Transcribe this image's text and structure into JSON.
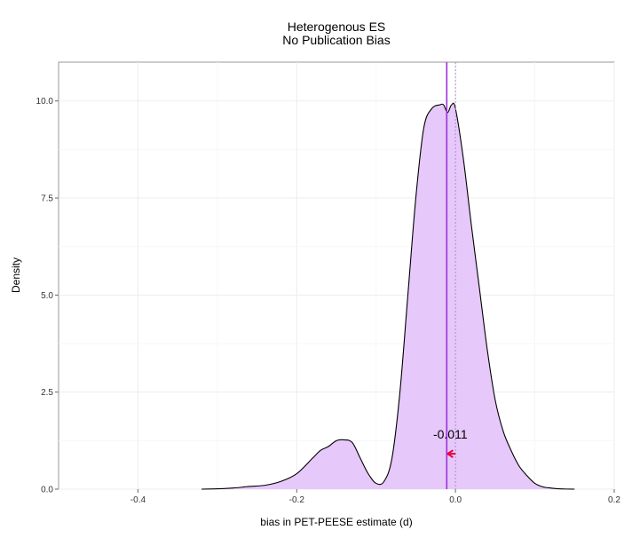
{
  "chart_data": {
    "type": "area",
    "title": [
      "Heterogenous ES",
      "No Publication Bias"
    ],
    "xlabel": "bias in PET-PEESE estimate (d)",
    "ylabel": "Density",
    "xlim": [
      -0.5,
      0.2
    ],
    "ylim": [
      0,
      11
    ],
    "xticks": [
      -0.4,
      -0.2,
      0.0,
      0.2
    ],
    "xtick_labels": [
      "-0.4",
      "-0.2",
      "0.0",
      "0.2"
    ],
    "yticks": [
      0.0,
      2.5,
      5.0,
      7.5,
      10.0
    ],
    "ytick_labels": [
      "0.0",
      "2.5",
      "5.0",
      "7.5",
      "10.0"
    ],
    "grid": true,
    "fill_color": "#e6c8fa",
    "line_color": "#000000",
    "series": [
      {
        "x": [
          -0.32,
          -0.3,
          -0.28,
          -0.26,
          -0.24,
          -0.22,
          -0.2,
          -0.18,
          -0.17,
          -0.16,
          -0.15,
          -0.14,
          -0.13,
          -0.12,
          -0.11,
          -0.1,
          -0.09,
          -0.08,
          -0.07,
          -0.06,
          -0.05,
          -0.04,
          -0.03,
          -0.02,
          -0.015,
          -0.01,
          -0.005,
          0.0,
          0.01,
          0.02,
          0.03,
          0.04,
          0.05,
          0.06,
          0.07,
          0.08,
          0.09,
          0.1,
          0.11,
          0.12,
          0.13,
          0.15
        ],
        "y": [
          0.0,
          0.01,
          0.03,
          0.07,
          0.1,
          0.2,
          0.4,
          0.8,
          1.0,
          1.1,
          1.25,
          1.27,
          1.2,
          0.8,
          0.4,
          0.15,
          0.2,
          0.8,
          2.5,
          5.0,
          7.5,
          9.3,
          9.8,
          9.9,
          9.9,
          9.7,
          9.9,
          9.8,
          8.5,
          6.8,
          5.2,
          3.6,
          2.3,
          1.5,
          1.0,
          0.6,
          0.35,
          0.15,
          0.06,
          0.03,
          0.01,
          0.0
        ]
      }
    ],
    "vlines": [
      {
        "x": -0.011,
        "style": "solid",
        "color": "#9b30d9"
      },
      {
        "x": 0.0,
        "style": "dotted",
        "color": "#b48ad6"
      }
    ],
    "annotation": {
      "text": "-0.011",
      "x": -0.011,
      "y": 1.3,
      "arrow_color": "#e8003c"
    }
  }
}
